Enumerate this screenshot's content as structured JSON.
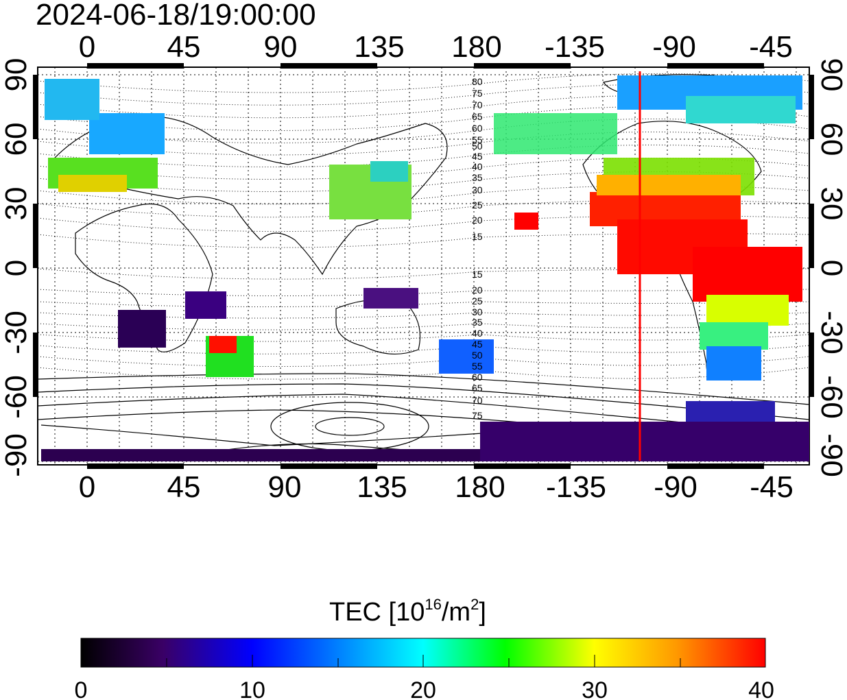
{
  "title": "2024-06-18/19:00:00",
  "map": {
    "lon_ticks_top": [
      "0",
      "45",
      "90",
      "135",
      "180",
      "-135",
      "-90",
      "-45"
    ],
    "lon_ticks_bottom": [
      "0",
      "45",
      "90",
      "135",
      "180",
      "-135",
      "-90",
      "-45"
    ],
    "lat_ticks_left": [
      "90",
      "60",
      "30",
      "0",
      "-30",
      "-60",
      "-90"
    ],
    "lat_ticks_right": [
      "90",
      "60",
      "30",
      "0",
      "-30",
      "-60",
      "-90"
    ],
    "contour_labels_north": [
      "80",
      "75",
      "70",
      "65",
      "60",
      "55",
      "50",
      "45",
      "40",
      "35",
      "30",
      "25",
      "20",
      "15"
    ],
    "contour_labels_south": [
      "15",
      "20",
      "25",
      "30",
      "35",
      "40",
      "45",
      "50",
      "55",
      "60",
      "65",
      "70",
      "75"
    ],
    "terminator_color": "#ff0000",
    "terminator_longitude": -105
  },
  "colorbar": {
    "title_main": "TEC  [10",
    "title_sup1": "16",
    "title_mid": "/m",
    "title_sup2": "2",
    "title_end": "]",
    "tick_labels": [
      "0",
      "10",
      "20",
      "30",
      "40"
    ],
    "min": 0,
    "max": 40,
    "colors": [
      "#000000",
      "#3a0066",
      "#0000ff",
      "#00ffff",
      "#00ff00",
      "#ffff00",
      "#ff0000"
    ]
  }
}
